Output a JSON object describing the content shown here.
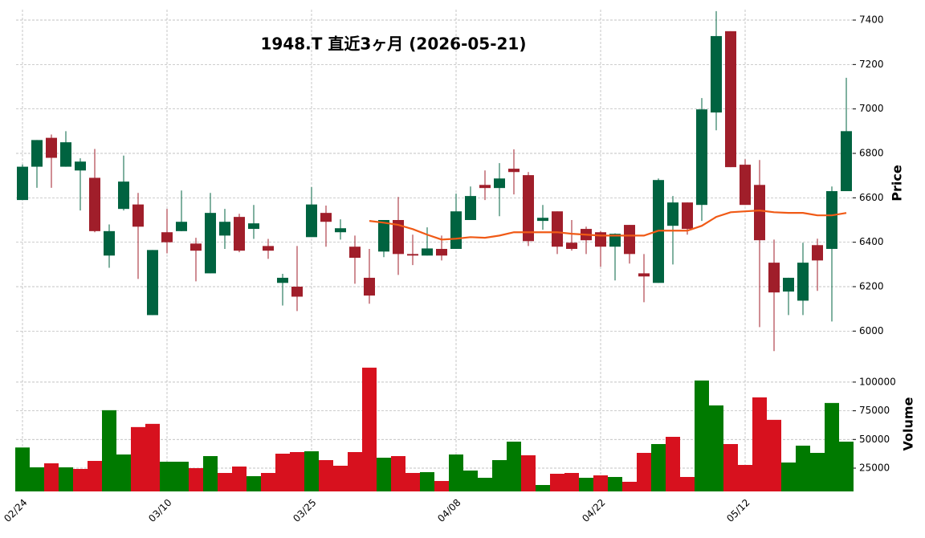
{
  "chart_data": {
    "type": "candlestick",
    "title": "1948.T  直近3ヶ月  (2026-05-21)",
    "ylabel": "Price",
    "categories": [
      "02/24",
      null,
      null,
      null,
      null,
      null,
      null,
      null,
      null,
      null,
      "03/10",
      null,
      null,
      null,
      null,
      null,
      null,
      null,
      null,
      null,
      "03/25",
      null,
      null,
      null,
      null,
      null,
      null,
      null,
      null,
      null,
      "04/08",
      null,
      null,
      null,
      null,
      null,
      null,
      null,
      null,
      null,
      "04/22",
      null,
      null,
      null,
      null,
      null,
      null,
      null,
      null,
      null,
      "05/12",
      null,
      null,
      null,
      null,
      null,
      null,
      null
    ],
    "open": [
      6590,
      6740,
      6870,
      6740,
      6723,
      6690,
      6340,
      6550,
      6570,
      6072,
      6445,
      6450,
      6394,
      6260,
      6430,
      6514,
      6460,
      6383,
      6217,
      6200,
      6423,
      6532,
      6445,
      6380,
      6240,
      6358,
      6500,
      6347,
      6340,
      6370,
      6370,
      6500,
      6658,
      6644,
      6731,
      6702,
      6496,
      6539,
      6398,
      6460,
      6445,
      6380,
      6478,
      6260,
      6217,
      6474,
      6579,
      6568,
      6984,
      7350,
      6749,
      6658,
      6308,
      6178,
      6137,
      6387,
      6370,
      6630
    ],
    "high": [
      6750,
      6860,
      6885,
      6900,
      6778,
      6820,
      6480,
      6790,
      6622,
      6365,
      6550,
      6633,
      6420,
      6622,
      6550,
      6528,
      6568,
      6415,
      6258,
      6383,
      6648,
      6565,
      6503,
      6430,
      6370,
      6500,
      6604,
      6434,
      6467,
      6430,
      6619,
      6651,
      6723,
      6756,
      6818,
      6716,
      6568,
      6539,
      6500,
      6470,
      6450,
      6440,
      6478,
      6347,
      6687,
      6608,
      6579,
      7049,
      7440,
      7350,
      6774,
      6770,
      6412,
      6240,
      6398,
      6416,
      6651,
      7140
    ],
    "low": [
      6590,
      6645,
      6645,
      6740,
      6543,
      6445,
      6285,
      6543,
      6235,
      6072,
      6350,
      6450,
      6224,
      6260,
      6370,
      6355,
      6415,
      6325,
      6115,
      6090,
      6423,
      6380,
      6412,
      6213,
      6123,
      6333,
      6253,
      6297,
      6340,
      6318,
      6370,
      6500,
      6590,
      6517,
      6615,
      6383,
      6456,
      6347,
      6362,
      6347,
      6290,
      6228,
      6304,
      6130,
      6217,
      6300,
      6434,
      6496,
      6904,
      6738,
      6568,
      6018,
      5910,
      6072,
      6072,
      6181,
      6043,
      6630
    ],
    "close": [
      6740,
      6860,
      6780,
      6850,
      6763,
      6450,
      6450,
      6673,
      6470,
      6365,
      6400,
      6492,
      6362,
      6532,
      6492,
      6362,
      6485,
      6362,
      6240,
      6155,
      6570,
      6492,
      6463,
      6330,
      6160,
      6500,
      6347,
      6340,
      6372,
      6340,
      6539,
      6608,
      6644,
      6687,
      6716,
      6405,
      6510,
      6380,
      6370,
      6409,
      6380,
      6438,
      6347,
      6246,
      6680,
      6579,
      6460,
      6998,
      7328,
      6738,
      6568,
      6409,
      6174,
      6240,
      6308,
      6318,
      6630,
      6900
    ],
    "ma": {
      "color": "#f05a16",
      "values": [
        null,
        null,
        null,
        null,
        null,
        null,
        null,
        null,
        null,
        null,
        null,
        null,
        null,
        null,
        null,
        null,
        null,
        null,
        null,
        null,
        null,
        null,
        null,
        null,
        6496,
        6488,
        6478,
        6459,
        6434,
        6412,
        6416,
        6423,
        6420,
        6430,
        6445,
        6445,
        6445,
        6445,
        6438,
        6434,
        6430,
        6430,
        6430,
        6430,
        6452,
        6452,
        6452,
        6474,
        6514,
        6535,
        6539,
        6543,
        6535,
        6532,
        6532,
        6521,
        6521,
        6532
      ]
    },
    "up_color": "#006340",
    "down_color": "#a01e2a",
    "ylim": [
      5900,
      7447
    ],
    "yticks": [
      6000,
      6200,
      6400,
      6600,
      6800,
      7000,
      7200,
      7400
    ],
    "grid": true,
    "volume": {
      "ylabel": "Volume",
      "up_color": "#007a00",
      "down_color": "#d7111e",
      "values": [
        43000,
        25700,
        29200,
        25700,
        24300,
        31300,
        75500,
        36900,
        60800,
        63600,
        30600,
        30600,
        25000,
        35500,
        20800,
        26400,
        18000,
        20800,
        37600,
        39000,
        39700,
        32000,
        27100,
        39000,
        112600,
        34100,
        35500,
        20800,
        21500,
        13800,
        36900,
        22900,
        16600,
        32000,
        48100,
        36200,
        10300,
        20100,
        20800,
        16600,
        18700,
        17300,
        13100,
        38300,
        46000,
        52300,
        17300,
        101400,
        79700,
        46000,
        27800,
        86700,
        67100,
        29900,
        44600,
        38300,
        81800,
        48100
      ],
      "ylim": [
        4700,
        123000
      ],
      "yticks": [
        25000,
        50000,
        75000,
        100000
      ]
    }
  }
}
